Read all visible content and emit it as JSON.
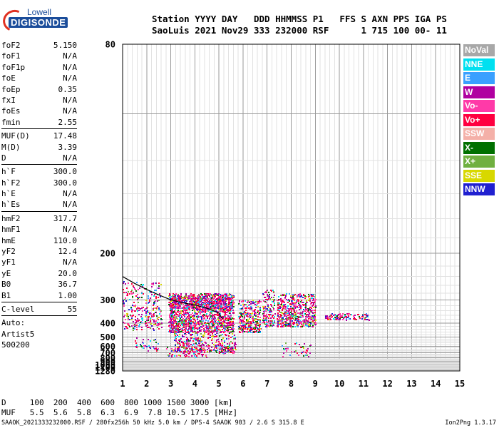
{
  "logo": {
    "line1": "Lowell",
    "line2": "DIGISONDE"
  },
  "header": {
    "line1": "Station YYYY DAY   DDD HHMMSS P1   FFS S AXN PPS IGA PS",
    "line2": "SaoLuis 2021 Nov29 333 232000 RSF      1 715 100 00- 11"
  },
  "sidebar": {
    "group1": [
      {
        "k": "foF2",
        "v": "5.150"
      },
      {
        "k": "foF1",
        "v": "N/A"
      },
      {
        "k": "foF1p",
        "v": "N/A"
      },
      {
        "k": "foE",
        "v": "N/A"
      },
      {
        "k": "foEp",
        "v": "0.35"
      },
      {
        "k": "fxI",
        "v": "N/A"
      },
      {
        "k": "foEs",
        "v": "N/A"
      },
      {
        "k": "fmin",
        "v": "2.55"
      }
    ],
    "group2": [
      {
        "k": "MUF(D)",
        "v": "17.48"
      },
      {
        "k": "M(D)",
        "v": "3.39"
      },
      {
        "k": "D",
        "v": "N/A"
      }
    ],
    "group3": [
      {
        "k": "h`F",
        "v": "300.0"
      },
      {
        "k": "h`F2",
        "v": "300.0"
      },
      {
        "k": "h`E",
        "v": "N/A"
      },
      {
        "k": "h`Es",
        "v": "N/A"
      }
    ],
    "group4": [
      {
        "k": "hmF2",
        "v": "317.7"
      },
      {
        "k": "hmF1",
        "v": "N/A"
      },
      {
        "k": "hmE",
        "v": "110.0"
      },
      {
        "k": "yF2",
        "v": "12.4"
      },
      {
        "k": "yF1",
        "v": "N/A"
      },
      {
        "k": "yE",
        "v": "20.0"
      },
      {
        "k": "B0",
        "v": "36.7"
      },
      {
        "k": "B1",
        "v": "1.00"
      }
    ],
    "group5": [
      {
        "k": "C-level",
        "v": "55"
      }
    ],
    "auto_lines": [
      "Auto:",
      "Artist5",
      "500200"
    ]
  },
  "legend": [
    {
      "label": "NoVal",
      "color": "#a8a8a8"
    },
    {
      "label": "NNE",
      "color": "#00e0f0"
    },
    {
      "label": "E",
      "color": "#3aa0ff"
    },
    {
      "label": "W",
      "color": "#b000a0"
    },
    {
      "label": "Vo-",
      "color": "#ff3aa8"
    },
    {
      "label": "Vo+",
      "color": "#ff0040"
    },
    {
      "label": "SSW",
      "color": "#f4b0a8"
    },
    {
      "label": "X-",
      "color": "#007000"
    },
    {
      "label": "X+",
      "color": "#70b040"
    },
    {
      "label": "SSE",
      "color": "#d8d800"
    },
    {
      "label": "NNW",
      "color": "#2020d0"
    }
  ],
  "dtable": {
    "line1": "D     100  200  400  600  800 1000 1500 3000 [km]",
    "line2": "MUF   5.5  5.6  5.8  6.3  6.9  7.8 10.5 17.5 [MHz]"
  },
  "footer": "SAAOK_2021333232000.RSF / 280fx256h 50 kHz 5.0 km / DPS-4 SAAOK 903 / 2.6 S 315.8 E",
  "version": "Ion2Png 1.3.17",
  "chart_data": {
    "type": "scatter",
    "x_ticks": [
      1,
      2,
      3,
      4,
      5,
      6,
      7,
      8,
      9,
      10,
      11,
      12,
      13,
      14,
      15
    ],
    "y_ticks": [
      80,
      200,
      300,
      400,
      500,
      600,
      700,
      800,
      900,
      1000,
      1100,
      1280
    ],
    "xlim": [
      1,
      15
    ],
    "ylim": [
      80,
      1280
    ],
    "y_scale": "reciprocal",
    "grid": true,
    "trace": {
      "x": [
        1.0,
        1.5,
        2.0,
        2.5,
        3.0,
        3.5,
        4.0,
        4.5,
        5.0,
        5.15
      ],
      "y": [
        240,
        255,
        270,
        285,
        300,
        310,
        318,
        330,
        350,
        380
      ]
    }
  }
}
